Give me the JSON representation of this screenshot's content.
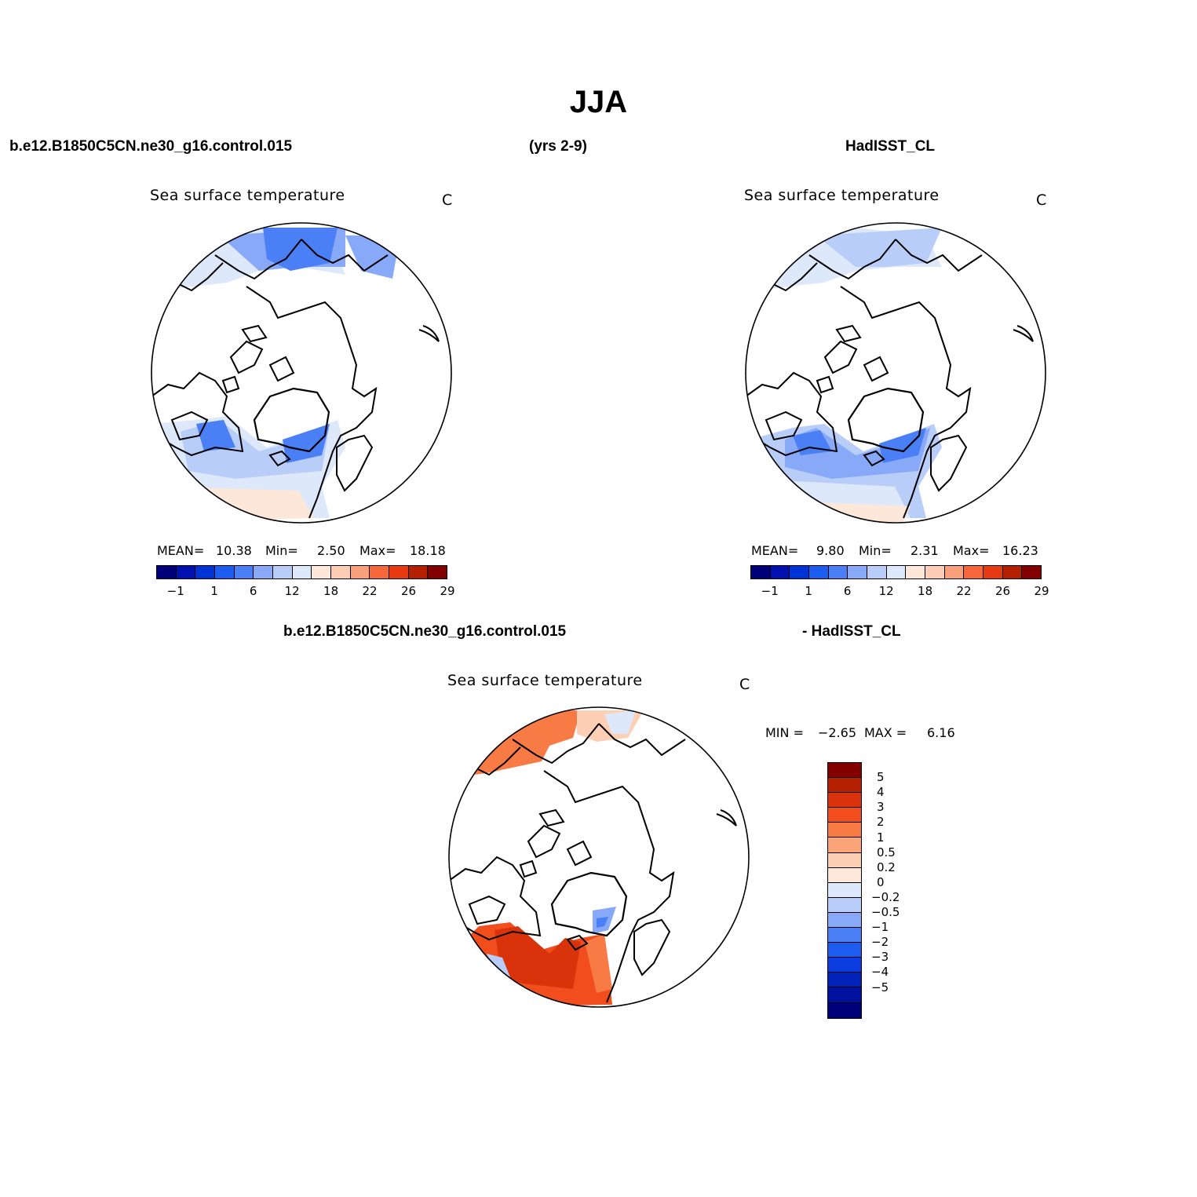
{
  "title": "JJA",
  "header": {
    "case_name": "b.e12.B1850C5CN.ne30_g16.control.015",
    "years": "(yrs 2-9)",
    "obs_name": "HadISST_CL"
  },
  "diff_header": {
    "case_name": "b.e12.B1850C5CN.ne30_g16.control.015",
    "obs_name": "- HadISST_CL"
  },
  "panels": {
    "model": {
      "variable": "Sea surface temperature",
      "units": "C",
      "mean_label": "MEAN=",
      "mean": "10.38",
      "min_label": "Min=",
      "min": "2.50",
      "max_label": "Max=",
      "max": "18.18"
    },
    "obs": {
      "variable": "Sea surface temperature",
      "units": "C",
      "mean_label": "MEAN=",
      "mean": "9.80",
      "min_label": "Min=",
      "min": "2.31",
      "max_label": "Max=",
      "max": "16.23"
    },
    "diff": {
      "variable": "Sea surface temperature",
      "units": "C",
      "min_label": "MIN =",
      "min": "−2.65",
      "max_label": "MAX =",
      "max": "6.16"
    }
  },
  "colorbar_abs": {
    "colors": [
      "#00007a",
      "#0011b0",
      "#0033d6",
      "#1d5cf0",
      "#4a7ff5",
      "#88a9f7",
      "#b9cdf9",
      "#dde8fb",
      "#fde7d8",
      "#fcccb4",
      "#f9a07a",
      "#f8673a",
      "#e83a12",
      "#b52100",
      "#820000"
    ],
    "labels": [
      "−1",
      "1",
      "6",
      "12",
      "18",
      "22",
      "26",
      "29"
    ]
  },
  "colorbar_diff": {
    "colors": [
      "#820000",
      "#b52100",
      "#d8330a",
      "#f24d1d",
      "#f87b45",
      "#fba47a",
      "#fdcfb4",
      "#fde8da",
      "#dde8fb",
      "#b9cdf9",
      "#88a9f7",
      "#4a7ff5",
      "#1d5cf0",
      "#0a3ce0",
      "#0022b8",
      "#0011a0",
      "#00007a"
    ],
    "labels": [
      "5",
      "4",
      "3",
      "2",
      "1",
      "0.5",
      "0.2",
      "0",
      "−0.2",
      "−0.5",
      "−1",
      "−2",
      "−3",
      "−4",
      "−5"
    ]
  }
}
